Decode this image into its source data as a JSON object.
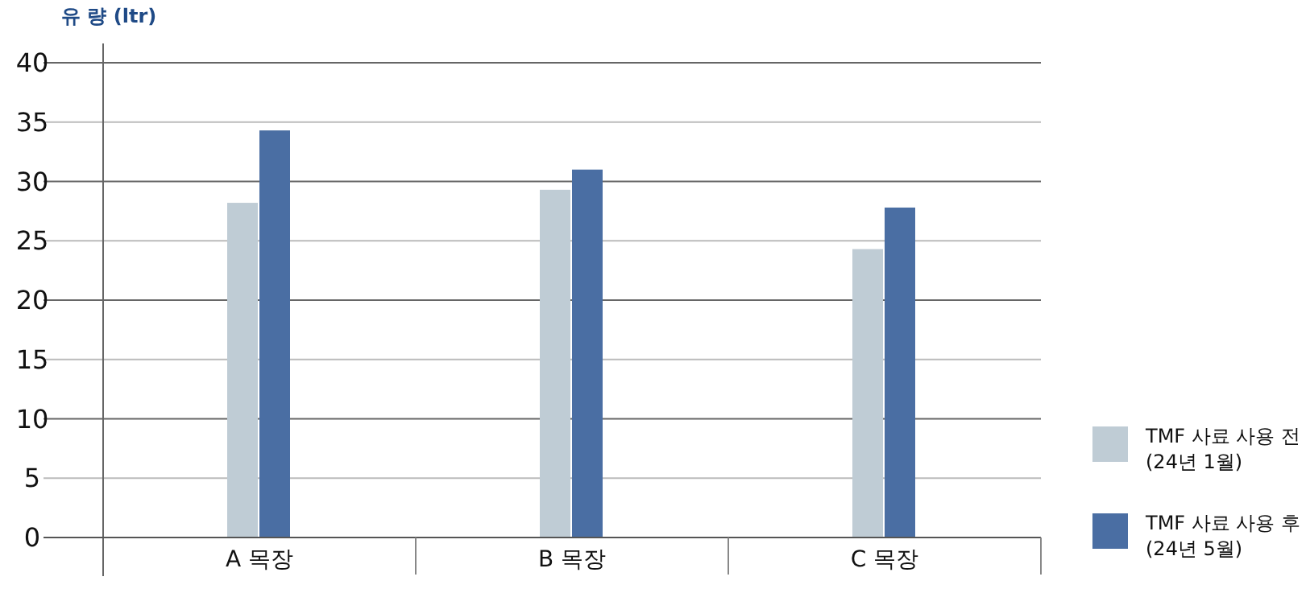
{
  "chart_data": {
    "type": "bar",
    "ylabel": "유 량 (ltr)",
    "categories": [
      "A 목장",
      "B 목장",
      "C 목장"
    ],
    "series": [
      {
        "name": "TMF 사료 사용 전\n(24년 1월)",
        "color": "#bfccd5",
        "values": [
          28.2,
          29.3,
          24.3
        ]
      },
      {
        "name": "TMF 사료 사용 후\n(24년 5월)",
        "color": "#4a6ea3",
        "values": [
          34.3,
          31.0,
          27.8
        ]
      }
    ],
    "ylim": [
      0,
      40
    ],
    "yticks": [
      0,
      5,
      10,
      15,
      20,
      25,
      30,
      35,
      40
    ],
    "grid": "y",
    "legend": "bottom right"
  }
}
